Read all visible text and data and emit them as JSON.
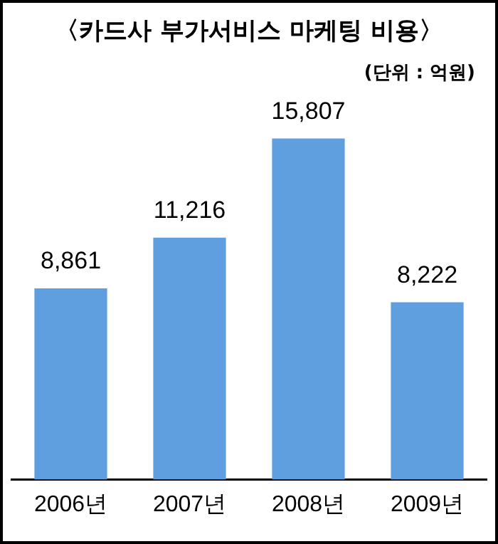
{
  "chart_data": {
    "type": "bar",
    "title": "〈카드사 부가서비스 마케팅 비용〉",
    "subtitle": "(단위 : 억원)",
    "categories": [
      "2006년",
      "2007년",
      "2008년",
      "2009년"
    ],
    "values": [
      8861,
      11216,
      15807,
      8222
    ],
    "color": "#5f9fe0",
    "value_labels": [
      "8,861",
      "11,216",
      "15,807",
      "8,222"
    ],
    "grid": false,
    "legend": false
  }
}
